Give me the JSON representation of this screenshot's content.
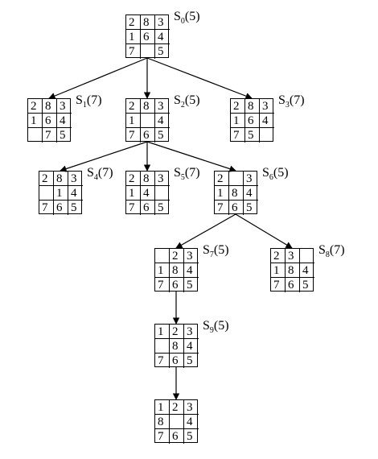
{
  "nodes": [
    {
      "id": "S0",
      "sub": "0",
      "h": "5",
      "grid": [
        [
          "2",
          "8",
          "3"
        ],
        [
          "1",
          "6",
          "4"
        ],
        [
          "7",
          "",
          "5"
        ]
      ]
    },
    {
      "id": "S1",
      "sub": "1",
      "h": "7",
      "grid": [
        [
          "2",
          "8",
          "3"
        ],
        [
          "1",
          "6",
          "4"
        ],
        [
          "",
          "7",
          "5"
        ]
      ]
    },
    {
      "id": "S2",
      "sub": "2",
      "h": "5",
      "grid": [
        [
          "2",
          "8",
          "3"
        ],
        [
          "1",
          "",
          "4"
        ],
        [
          "7",
          "6",
          "5"
        ]
      ]
    },
    {
      "id": "S3",
      "sub": "3",
      "h": "7",
      "grid": [
        [
          "2",
          "8",
          "3"
        ],
        [
          "1",
          "6",
          "4"
        ],
        [
          "7",
          "5",
          ""
        ]
      ]
    },
    {
      "id": "S4",
      "sub": "4",
      "h": "7",
      "grid": [
        [
          "2",
          "8",
          "3"
        ],
        [
          "",
          "1",
          "4"
        ],
        [
          "7",
          "6",
          "5"
        ]
      ]
    },
    {
      "id": "S5",
      "sub": "5",
      "h": "7",
      "grid": [
        [
          "2",
          "8",
          "3"
        ],
        [
          "1",
          "4",
          ""
        ],
        [
          "7",
          "6",
          "5"
        ]
      ]
    },
    {
      "id": "S6",
      "sub": "6",
      "h": "5",
      "grid": [
        [
          "2",
          "",
          "3"
        ],
        [
          "1",
          "8",
          "4"
        ],
        [
          "7",
          "6",
          "5"
        ]
      ]
    },
    {
      "id": "S7",
      "sub": "7",
      "h": "5",
      "grid": [
        [
          "",
          "2",
          "3"
        ],
        [
          "1",
          "8",
          "4"
        ],
        [
          "7",
          "6",
          "5"
        ]
      ]
    },
    {
      "id": "S8",
      "sub": "8",
      "h": "7",
      "grid": [
        [
          "2",
          "3",
          ""
        ],
        [
          "1",
          "8",
          "4"
        ],
        [
          "7",
          "6",
          "5"
        ]
      ]
    },
    {
      "id": "S9",
      "sub": "9",
      "h": "5",
      "grid": [
        [
          "1",
          "2",
          "3"
        ],
        [
          "",
          "8",
          "4"
        ],
        [
          "7",
          "6",
          "5"
        ]
      ]
    },
    {
      "id": "S10",
      "sub": "",
      "h": "",
      "grid": [
        [
          "1",
          "2",
          "3"
        ],
        [
          "8",
          "",
          "4"
        ],
        [
          "7",
          "6",
          "5"
        ]
      ]
    }
  ],
  "edges": [
    [
      "S0",
      "S1"
    ],
    [
      "S0",
      "S2"
    ],
    [
      "S0",
      "S3"
    ],
    [
      "S2",
      "S4"
    ],
    [
      "S2",
      "S5"
    ],
    [
      "S2",
      "S6"
    ],
    [
      "S6",
      "S7"
    ],
    [
      "S6",
      "S8"
    ],
    [
      "S7",
      "S9"
    ],
    [
      "S9",
      "S10"
    ]
  ]
}
